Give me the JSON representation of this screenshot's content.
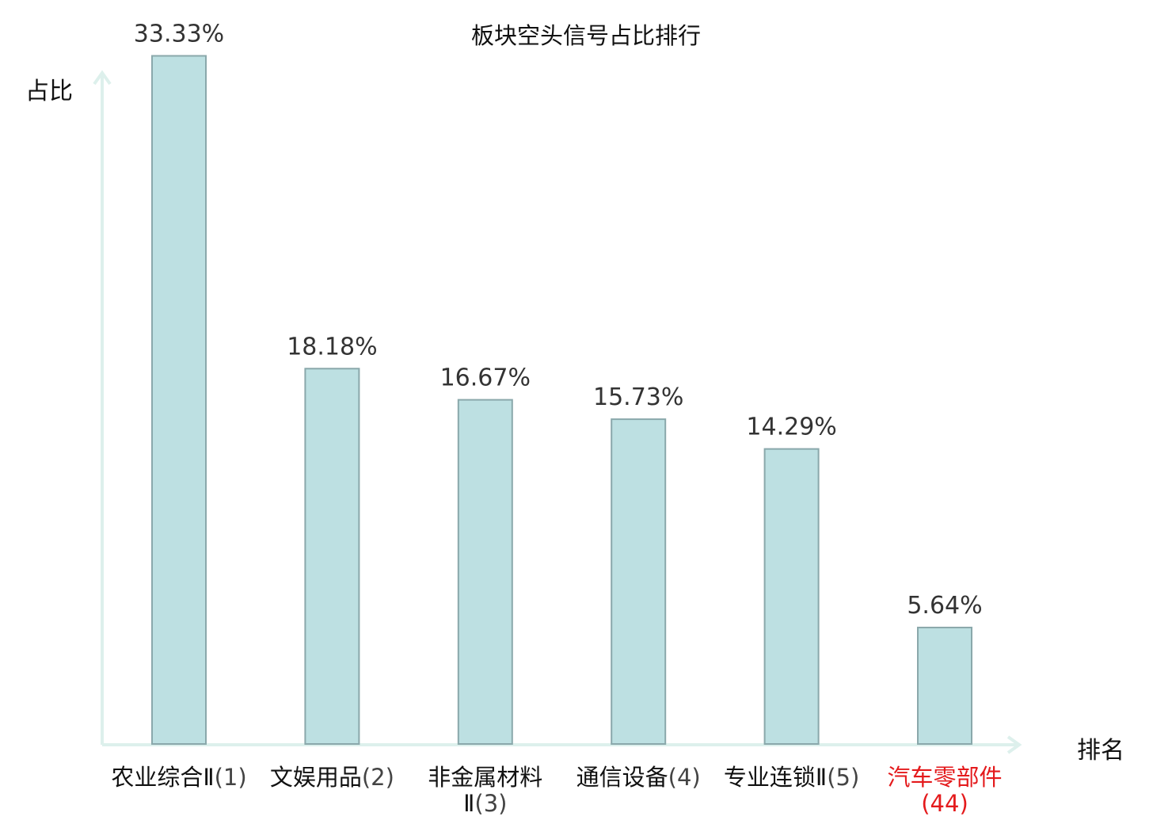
{
  "chart_data": {
    "type": "bar",
    "title": "板块空头信号占比排行",
    "ylabel": "占比",
    "xlabel": "排名",
    "ylim": [
      0,
      34.5
    ],
    "categories": [
      {
        "name": "农业综合Ⅱ",
        "rank": "(1)",
        "highlight": false
      },
      {
        "name": "文娱用品",
        "rank": "(2)",
        "highlight": false
      },
      {
        "name": "非金属材料Ⅱ",
        "rank": "(3)",
        "highlight": false
      },
      {
        "name": "通信设备",
        "rank": "(4)",
        "highlight": false
      },
      {
        "name": "专业连锁Ⅱ",
        "rank": "(5)",
        "highlight": false
      },
      {
        "name": "汽车零部件",
        "rank": "(44)",
        "highlight": true
      }
    ],
    "values": [
      33.33,
      18.18,
      16.67,
      15.73,
      14.29,
      5.64
    ],
    "value_labels": [
      "33.33%",
      "18.18%",
      "16.67%",
      "15.73%",
      "14.29%",
      "5.64%"
    ],
    "grid": false,
    "legend": "none",
    "colors": {
      "bar_fill": "#bde0e2",
      "bar_stroke": "#8aa8ab",
      "axis": "#ddf0ec",
      "highlight_text": "#e41a1c"
    }
  }
}
